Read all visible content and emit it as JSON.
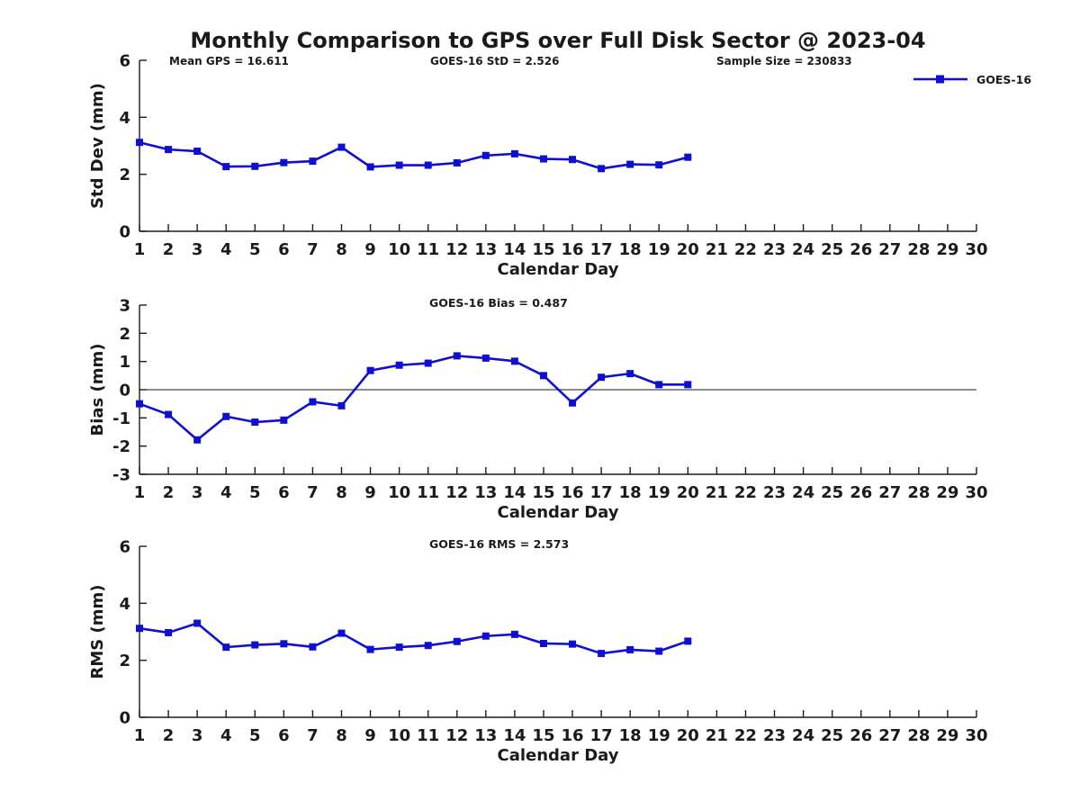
{
  "header": {
    "title": "Monthly Comparison to GPS over Full Disk Sector @ 2023-04",
    "stats": [
      {
        "text": "Mean GPS = 16.611"
      },
      {
        "text": "GOES-16 StD = 2.526"
      },
      {
        "text": "Sample Size = 230833"
      }
    ]
  },
  "legend": {
    "label": "GOES-16",
    "color": "#0f0fd2"
  },
  "colors": {
    "series": "#0f0fd2",
    "axis": "#1a1a1a",
    "text": "#1a1a1a"
  },
  "chart_data": [
    {
      "type": "line",
      "title": "",
      "xlabel": "Calendar Day",
      "ylabel": "Std Dev (mm)",
      "xlim": [
        1,
        30
      ],
      "ylim": [
        0,
        6
      ],
      "yticks": [
        0,
        2,
        4,
        6
      ],
      "xticks": [
        1,
        2,
        3,
        4,
        5,
        6,
        7,
        8,
        9,
        10,
        11,
        12,
        13,
        14,
        15,
        16,
        17,
        18,
        19,
        20,
        21,
        22,
        23,
        24,
        25,
        26,
        27,
        28,
        29,
        30
      ],
      "grid": false,
      "legend_position": "top-right",
      "x": [
        1,
        2,
        3,
        4,
        5,
        6,
        7,
        8,
        9,
        10,
        11,
        12,
        13,
        14,
        15,
        16,
        17,
        18,
        19,
        20
      ],
      "series": [
        {
          "name": "GOES-16",
          "values": [
            3.12,
            2.87,
            2.81,
            2.27,
            2.28,
            2.41,
            2.46,
            2.95,
            2.26,
            2.32,
            2.32,
            2.4,
            2.66,
            2.72,
            2.54,
            2.52,
            2.2,
            2.35,
            2.33,
            2.6
          ]
        }
      ]
    },
    {
      "type": "line",
      "title": "GOES-16 Bias = 0.487",
      "xlabel": "Calendar Day",
      "ylabel": "Bias (mm)",
      "xlim": [
        1,
        30
      ],
      "ylim": [
        -3,
        3
      ],
      "yticks": [
        3,
        2,
        1,
        0,
        -1,
        -2,
        -3
      ],
      "xticks": [
        1,
        2,
        3,
        4,
        5,
        6,
        7,
        8,
        9,
        10,
        11,
        12,
        13,
        14,
        15,
        16,
        17,
        18,
        19,
        20,
        21,
        22,
        23,
        24,
        25,
        26,
        27,
        28,
        29,
        30
      ],
      "zero_line": true,
      "grid": false,
      "x": [
        1,
        2,
        3,
        4,
        5,
        6,
        7,
        8,
        9,
        10,
        11,
        12,
        13,
        14,
        15,
        16,
        17,
        18,
        19,
        20
      ],
      "series": [
        {
          "name": "GOES-16",
          "values": [
            -0.5,
            -0.88,
            -1.78,
            -0.95,
            -1.15,
            -1.08,
            -0.43,
            -0.57,
            0.68,
            0.87,
            0.94,
            1.2,
            1.12,
            1.01,
            0.5,
            -0.47,
            0.44,
            0.57,
            0.18,
            0.18
          ]
        }
      ]
    },
    {
      "type": "line",
      "title": "GOES-16 RMS = 2.573",
      "xlabel": "Calendar Day",
      "ylabel": "RMS (mm)",
      "xlim": [
        1,
        30
      ],
      "ylim": [
        0,
        6
      ],
      "yticks": [
        0,
        2,
        4,
        6
      ],
      "xticks": [
        1,
        2,
        3,
        4,
        5,
        6,
        7,
        8,
        9,
        10,
        11,
        12,
        13,
        14,
        15,
        16,
        17,
        18,
        19,
        20,
        21,
        22,
        23,
        24,
        25,
        26,
        27,
        28,
        29,
        30
      ],
      "grid": false,
      "x": [
        1,
        2,
        3,
        4,
        5,
        6,
        7,
        8,
        9,
        10,
        11,
        12,
        13,
        14,
        15,
        16,
        17,
        18,
        19,
        20
      ],
      "series": [
        {
          "name": "GOES-16",
          "values": [
            3.12,
            2.97,
            3.3,
            2.46,
            2.54,
            2.58,
            2.47,
            2.95,
            2.38,
            2.46,
            2.52,
            2.66,
            2.85,
            2.91,
            2.59,
            2.57,
            2.24,
            2.37,
            2.32,
            2.67
          ]
        }
      ]
    }
  ]
}
